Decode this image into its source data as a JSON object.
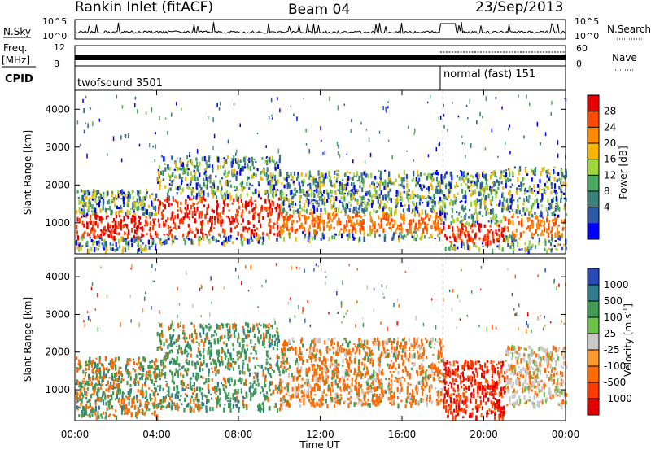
{
  "header": {
    "station": "Rankin Inlet (fitACF)",
    "beam": "Beam 04",
    "date": "23/Sep/2013"
  },
  "top_panels": {
    "nsky_label": "N.Sky",
    "nsky_ticks": [
      "10^5",
      "10^0"
    ],
    "nsearch_label": "N.Search",
    "freq_label_line1": "Freq.",
    "freq_label_line2": "[MHz]",
    "freq_ticks": [
      "12",
      "8"
    ],
    "nave_ticks": [
      "60",
      "0"
    ],
    "nave_label": "Nave",
    "cpid_label": "CPID",
    "cpid_segments": [
      {
        "name": "twofsound 3501",
        "start_hour": 0,
        "end_hour": 18
      },
      {
        "name": "normal (fast) 151",
        "start_hour": 18,
        "end_hour": 24
      }
    ],
    "freq_mhz_approx": 10,
    "nave_approx": {
      "before_18": 0,
      "after_18": 45
    }
  },
  "chart_data": [
    {
      "type": "heatmap",
      "name": "power",
      "xlabel": "",
      "ylabel": "Slant Range [km]",
      "xlim": [
        0,
        24
      ],
      "ylim": [
        180,
        4500
      ],
      "yticks": [
        1000,
        2000,
        3000,
        4000
      ],
      "colorbar": {
        "label": "Power [dB]",
        "ticks": [
          "28",
          "24",
          "20",
          "16",
          "12",
          "8",
          "4"
        ],
        "colors": [
          "#e60000",
          "#ff4a00",
          "#ff8a00",
          "#f7b500",
          "#9fd43a",
          "#4aa860",
          "#3b7f7a",
          "#2a59a8",
          "#0000ff"
        ]
      },
      "echo_bands_km": [
        {
          "start_hour": 0,
          "end_hour": 4,
          "range": [
            300,
            1900
          ],
          "core": [
            650,
            1250
          ],
          "core_level": "strong"
        },
        {
          "start_hour": 4,
          "end_hour": 10,
          "range": [
            500,
            2800
          ],
          "core": [
            700,
            1700
          ],
          "core_level": "strong"
        },
        {
          "start_hour": 10,
          "end_hour": 18,
          "range": [
            600,
            2400
          ],
          "core": [
            800,
            1300
          ],
          "core_level": "medium"
        },
        {
          "start_hour": 18,
          "end_hour": 21,
          "range": [
            300,
            2400
          ],
          "core": [
            500,
            1000
          ],
          "core_level": "strong"
        },
        {
          "start_hour": 21,
          "end_hour": 24,
          "range": [
            300,
            2500
          ],
          "core": [
            700,
            1200
          ],
          "core_level": "medium"
        }
      ]
    },
    {
      "type": "heatmap",
      "name": "velocity",
      "xlabel": "Time UT",
      "ylabel": "Slant Range [km]",
      "xlim": [
        0,
        24
      ],
      "ylim": [
        180,
        4500
      ],
      "yticks": [
        1000,
        2000,
        3000,
        4000
      ],
      "xticks": [
        "00:00",
        "04:00",
        "08:00",
        "12:00",
        "16:00",
        "20:00",
        "00:00"
      ],
      "colorbar": {
        "label": "Velocity [m s",
        "label_sup": "-1",
        "label_end": "]",
        "ticks": [
          "1000",
          "500",
          "100",
          "25",
          "-25",
          "-100",
          "-500",
          "-1000"
        ],
        "colors": [
          "#2a49b8",
          "#2f7d8c",
          "#3f9a55",
          "#6cc34a",
          "#c8c8c8",
          "#ff9a30",
          "#ff6a00",
          "#ff3a00",
          "#e60000"
        ]
      },
      "echo_bands_km": [
        {
          "start_hour": 0,
          "end_hour": 4,
          "range": [
            300,
            1900
          ],
          "dominant": "orange/green mix"
        },
        {
          "start_hour": 4,
          "end_hour": 10,
          "range": [
            500,
            2800
          ],
          "dominant": "green"
        },
        {
          "start_hour": 10,
          "end_hour": 18,
          "range": [
            600,
            2400
          ],
          "dominant": "orange"
        },
        {
          "start_hour": 18,
          "end_hour": 21,
          "range": [
            300,
            1800
          ],
          "dominant": "red/orange"
        },
        {
          "start_hour": 21,
          "end_hour": 24,
          "range": [
            600,
            2200
          ],
          "dominant": "grey/orange"
        }
      ]
    }
  ]
}
